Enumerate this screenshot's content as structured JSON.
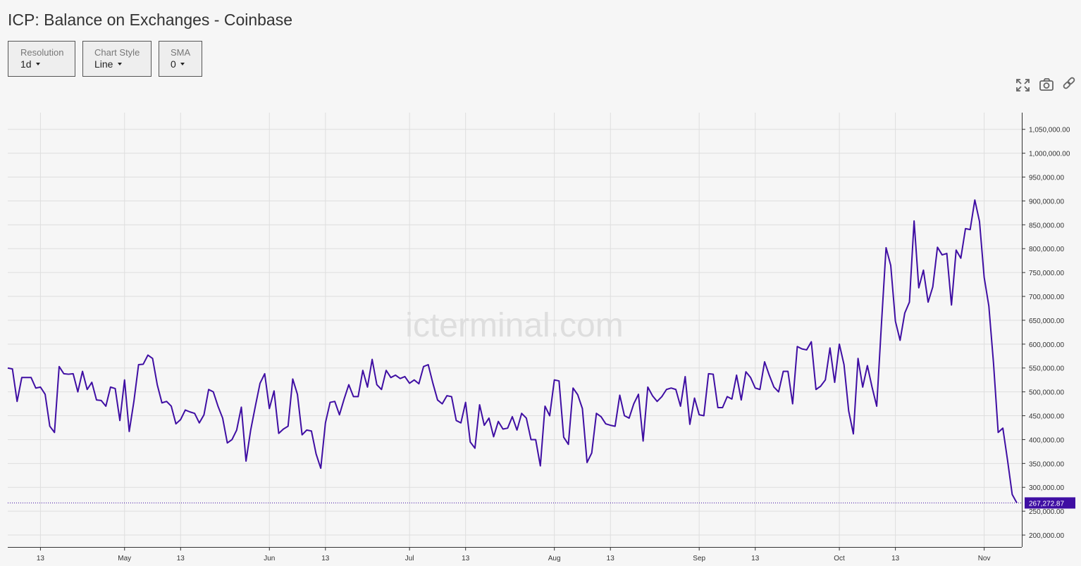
{
  "title": "ICP: Balance on Exchanges - Coinbase",
  "controls": [
    {
      "label": "Resolution",
      "value": "1d"
    },
    {
      "label": "Chart Style",
      "value": "Line"
    },
    {
      "label": "SMA",
      "value": "0"
    }
  ],
  "watermark": "icterminal.com",
  "chart_data": {
    "type": "line",
    "x": [
      "Apr 6",
      "Apr 7",
      "Apr 8",
      "Apr 9",
      "Apr 10",
      "Apr 11",
      "Apr 12",
      "Apr 13",
      "Apr 14",
      "Apr 15",
      "Apr 16",
      "Apr 17",
      "Apr 18",
      "Apr 19",
      "Apr 20",
      "Apr 21",
      "Apr 22",
      "Apr 23",
      "Apr 24",
      "Apr 25",
      "Apr 26",
      "Apr 27",
      "Apr 28",
      "Apr 29",
      "Apr 30",
      "May 1",
      "May 2",
      "May 3",
      "May 4",
      "May 5",
      "May 6",
      "May 7",
      "May 8",
      "May 9",
      "May 10",
      "May 11",
      "May 12",
      "May 13",
      "May 14",
      "May 15",
      "May 16",
      "May 17",
      "May 18",
      "May 19",
      "May 20",
      "May 21",
      "May 22",
      "May 23",
      "May 24",
      "May 25",
      "May 26",
      "May 27",
      "May 28",
      "May 29",
      "May 30",
      "May 31",
      "Jun 1",
      "Jun 2",
      "Jun 3",
      "Jun 4",
      "Jun 5",
      "Jun 6",
      "Jun 7",
      "Jun 8",
      "Jun 9",
      "Jun 10",
      "Jun 11",
      "Jun 12",
      "Jun 13",
      "Jun 14",
      "Jun 15",
      "Jun 16",
      "Jun 17",
      "Jun 18",
      "Jun 19",
      "Jun 20",
      "Jun 21",
      "Jun 22",
      "Jun 23",
      "Jun 24",
      "Jun 25",
      "Jun 26",
      "Jun 27",
      "Jun 28",
      "Jun 29",
      "Jun 30",
      "Jul 1",
      "Jul 2",
      "Jul 3",
      "Jul 4",
      "Jul 5",
      "Jul 6",
      "Jul 7",
      "Jul 8",
      "Jul 9",
      "Jul 10",
      "Jul 11",
      "Jul 12",
      "Jul 13",
      "Jul 14",
      "Jul 15",
      "Jul 16",
      "Jul 17",
      "Jul 18",
      "Jul 19",
      "Jul 20",
      "Jul 21",
      "Jul 22",
      "Jul 23",
      "Jul 24",
      "Jul 25",
      "Jul 26",
      "Jul 27",
      "Jul 28",
      "Jul 29",
      "Jul 30",
      "Jul 31",
      "Aug 1",
      "Aug 2",
      "Aug 3",
      "Aug 4",
      "Aug 5",
      "Aug 6",
      "Aug 7",
      "Aug 8",
      "Aug 9",
      "Aug 10",
      "Aug 11",
      "Aug 12",
      "Aug 13",
      "Aug 14",
      "Aug 15",
      "Aug 16",
      "Aug 17",
      "Aug 18",
      "Aug 19",
      "Aug 20",
      "Aug 21",
      "Aug 22",
      "Aug 23",
      "Aug 24",
      "Aug 25",
      "Aug 26",
      "Aug 27",
      "Aug 28",
      "Aug 29",
      "Aug 30",
      "Aug 31",
      "Sep 1",
      "Sep 2",
      "Sep 3",
      "Sep 4",
      "Sep 5",
      "Sep 6",
      "Sep 7",
      "Sep 8",
      "Sep 9",
      "Sep 10",
      "Sep 11",
      "Sep 12",
      "Sep 13",
      "Sep 14",
      "Sep 15",
      "Sep 16",
      "Sep 17",
      "Sep 18",
      "Sep 19",
      "Sep 20",
      "Sep 21",
      "Sep 22",
      "Sep 23",
      "Sep 24",
      "Sep 25",
      "Sep 26",
      "Sep 27",
      "Sep 28",
      "Sep 29",
      "Sep 30",
      "Oct 1",
      "Oct 2",
      "Oct 3",
      "Oct 4",
      "Oct 5",
      "Oct 6",
      "Oct 7",
      "Oct 8",
      "Oct 9",
      "Oct 10",
      "Oct 11",
      "Oct 12",
      "Oct 13",
      "Oct 14",
      "Oct 15",
      "Oct 16",
      "Oct 17",
      "Oct 18",
      "Oct 19",
      "Oct 20",
      "Oct 21",
      "Oct 22",
      "Oct 23",
      "Oct 24",
      "Oct 25",
      "Oct 26",
      "Oct 27",
      "Oct 28",
      "Oct 29",
      "Oct 30",
      "Oct 31",
      "Nov 1",
      "Nov 2",
      "Nov 3",
      "Nov 4",
      "Nov 5",
      "Nov 6",
      "Nov 7",
      "Nov 8"
    ],
    "series": [
      {
        "name": "Coinbase",
        "color": "#3f0ea3",
        "values": [
          550000,
          548000,
          480000,
          530000,
          530000,
          530000,
          508000,
          510000,
          495000,
          428000,
          415000,
          553000,
          538000,
          537000,
          538000,
          500000,
          543000,
          505000,
          520000,
          483000,
          482000,
          470000,
          510000,
          507000,
          440000,
          525000,
          417000,
          480000,
          557000,
          558000,
          577000,
          570000,
          515000,
          477000,
          480000,
          470000,
          433000,
          442000,
          462000,
          458000,
          455000,
          435000,
          452000,
          505000,
          500000,
          470000,
          445000,
          393000,
          400000,
          420000,
          468000,
          355000,
          420000,
          470000,
          518000,
          538000,
          465000,
          502000,
          413000,
          422000,
          428000,
          527000,
          495000,
          410000,
          420000,
          418000,
          370000,
          340000,
          435000,
          478000,
          480000,
          452000,
          485000,
          515000,
          490000,
          490000,
          545000,
          510000,
          568000,
          515000,
          505000,
          545000,
          530000,
          535000,
          528000,
          532000,
          518000,
          525000,
          517000,
          553000,
          557000,
          518000,
          483000,
          475000,
          492000,
          490000,
          440000,
          435000,
          478000,
          395000,
          382000,
          473000,
          430000,
          445000,
          406000,
          438000,
          422000,
          424000,
          448000,
          420000,
          455000,
          445000,
          400000,
          400000,
          345000,
          470000,
          450000,
          525000,
          523000,
          405000,
          390000,
          508000,
          494000,
          465000,
          352000,
          372000,
          455000,
          448000,
          433000,
          430000,
          428000,
          493000,
          450000,
          445000,
          475000,
          495000,
          397000,
          510000,
          492000,
          480000,
          490000,
          505000,
          508000,
          505000,
          470000,
          532000,
          432000,
          487000,
          452000,
          450000,
          538000,
          537000,
          467000,
          467000,
          490000,
          485000,
          535000,
          483000,
          542000,
          530000,
          508000,
          505000,
          563000,
          535000,
          510000,
          500000,
          543000,
          543000,
          475000,
          595000,
          590000,
          588000,
          605000,
          505000,
          512000,
          525000,
          592000,
          520000,
          600000,
          557000,
          460000,
          412000,
          570000,
          510000,
          555000,
          510000,
          470000,
          640000,
          802000,
          765000,
          648000,
          608000,
          665000,
          688000,
          858000,
          718000,
          755000,
          688000,
          720000,
          803000,
          787000,
          790000,
          682000,
          797000,
          780000,
          842000,
          840000,
          902000,
          857000,
          740000,
          680000,
          560000,
          415000,
          424000,
          357000,
          285000,
          267272.87
        ]
      }
    ],
    "current_value": {
      "value": 267272.87,
      "label": "267,272.87"
    },
    "ylim": [
      175000,
      1085000
    ],
    "yticks": [
      {
        "value": 200000,
        "label": "200,000.00"
      },
      {
        "value": 250000,
        "label": "250,000.00"
      },
      {
        "value": 300000,
        "label": "300,000.00"
      },
      {
        "value": 350000,
        "label": "350,000.00"
      },
      {
        "value": 400000,
        "label": "400,000.00"
      },
      {
        "value": 450000,
        "label": "450,000.00"
      },
      {
        "value": 500000,
        "label": "500,000.00"
      },
      {
        "value": 550000,
        "label": "550,000.00"
      },
      {
        "value": 600000,
        "label": "600,000.00"
      },
      {
        "value": 650000,
        "label": "650,000.00"
      },
      {
        "value": 700000,
        "label": "700,000.00"
      },
      {
        "value": 750000,
        "label": "750,000.00"
      },
      {
        "value": 800000,
        "label": "800,000.00"
      },
      {
        "value": 850000,
        "label": "850,000.00"
      },
      {
        "value": 900000,
        "label": "900,000.00"
      },
      {
        "value": 950000,
        "label": "950,000.00"
      },
      {
        "value": 1000000,
        "label": "1,000,000.00"
      },
      {
        "value": 1050000,
        "label": "1,050,000.00"
      }
    ],
    "xticks": [
      {
        "value": "Apr 13",
        "label": "13"
      },
      {
        "value": "May 1",
        "label": "May"
      },
      {
        "value": "May 13",
        "label": "13"
      },
      {
        "value": "Jun 1",
        "label": "Jun"
      },
      {
        "value": "Jun 13",
        "label": "13"
      },
      {
        "value": "Jul 1",
        "label": "Jul"
      },
      {
        "value": "Jul 13",
        "label": "13"
      },
      {
        "value": "Aug 1",
        "label": "Aug"
      },
      {
        "value": "Aug 13",
        "label": "13"
      },
      {
        "value": "Sep 1",
        "label": "Sep"
      },
      {
        "value": "Sep 13",
        "label": "13"
      },
      {
        "value": "Oct 1",
        "label": "Oct"
      },
      {
        "value": "Oct 13",
        "label": "13"
      },
      {
        "value": "Nov 1",
        "label": "Nov"
      }
    ],
    "grid": true
  }
}
